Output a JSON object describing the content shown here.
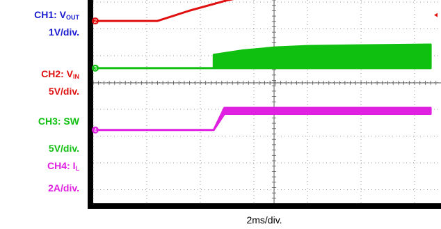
{
  "labels": {
    "ch1": {
      "name": "CH1: V",
      "sub": "OUT",
      "scale": "1V/div."
    },
    "ch2": {
      "name": "CH2: V",
      "sub": "IN",
      "scale": "5V/div."
    },
    "ch3": {
      "name": "CH3: SW",
      "scale": "5V/div."
    },
    "ch4": {
      "name": "CH4: I",
      "sub": "L",
      "scale": "2A/div."
    }
  },
  "timebase": "2ms/div.",
  "colors": {
    "ch1": "#1a1ad0",
    "ch2": "#e01010",
    "ch3": "#10c010",
    "ch4": "#e020e0",
    "screen": "#000000",
    "grid": "#777777"
  },
  "chart_data": {
    "type": "line",
    "title": "",
    "xlabel": "2ms/div.",
    "grid": true,
    "divisions": {
      "x": 10,
      "y": 8
    },
    "x_range_divs": [
      0,
      6.3
    ],
    "series": [
      {
        "name": "CH1: VOUT",
        "channel": 1,
        "ground_div": 5.6,
        "points": [
          [
            0,
            5.6
          ],
          [
            2.25,
            5.6
          ],
          [
            2.25,
            5.8
          ],
          [
            2.43,
            6.15
          ],
          [
            2.55,
            6.6
          ]
        ]
      },
      {
        "name": "CH2: VIN",
        "channel": 2,
        "ground_div": 2.1,
        "points": [
          [
            0,
            2.1
          ],
          [
            1.2,
            2.1
          ],
          [
            1.8,
            2.45
          ],
          [
            2.5,
            2.8
          ],
          [
            3.2,
            3.05
          ],
          [
            4.0,
            3.2
          ],
          [
            5.0,
            3.3
          ],
          [
            6.3,
            3.35
          ]
        ]
      },
      {
        "name": "CH3: SW",
        "channel": 3,
        "ground_div": 0.5,
        "envelope": true,
        "upper": [
          [
            0,
            0.5
          ],
          [
            2.25,
            0.5
          ],
          [
            2.25,
            0.95
          ],
          [
            2.8,
            1.1
          ],
          [
            3.4,
            1.2
          ],
          [
            4.0,
            1.25
          ],
          [
            6.3,
            1.3
          ]
        ],
        "lower": [
          [
            0,
            0.5
          ],
          [
            6.3,
            0.5
          ]
        ]
      },
      {
        "name": "CH4: IL",
        "channel": 4,
        "ground_div": -1.6,
        "envelope": true,
        "upper": [
          [
            0,
            -1.6
          ],
          [
            2.25,
            -1.6
          ],
          [
            2.45,
            -0.85
          ],
          [
            6.3,
            -0.85
          ]
        ],
        "lower": [
          [
            0,
            -1.6
          ],
          [
            2.25,
            -1.6
          ],
          [
            2.45,
            -1.05
          ],
          [
            6.3,
            -1.05
          ]
        ]
      }
    ]
  }
}
